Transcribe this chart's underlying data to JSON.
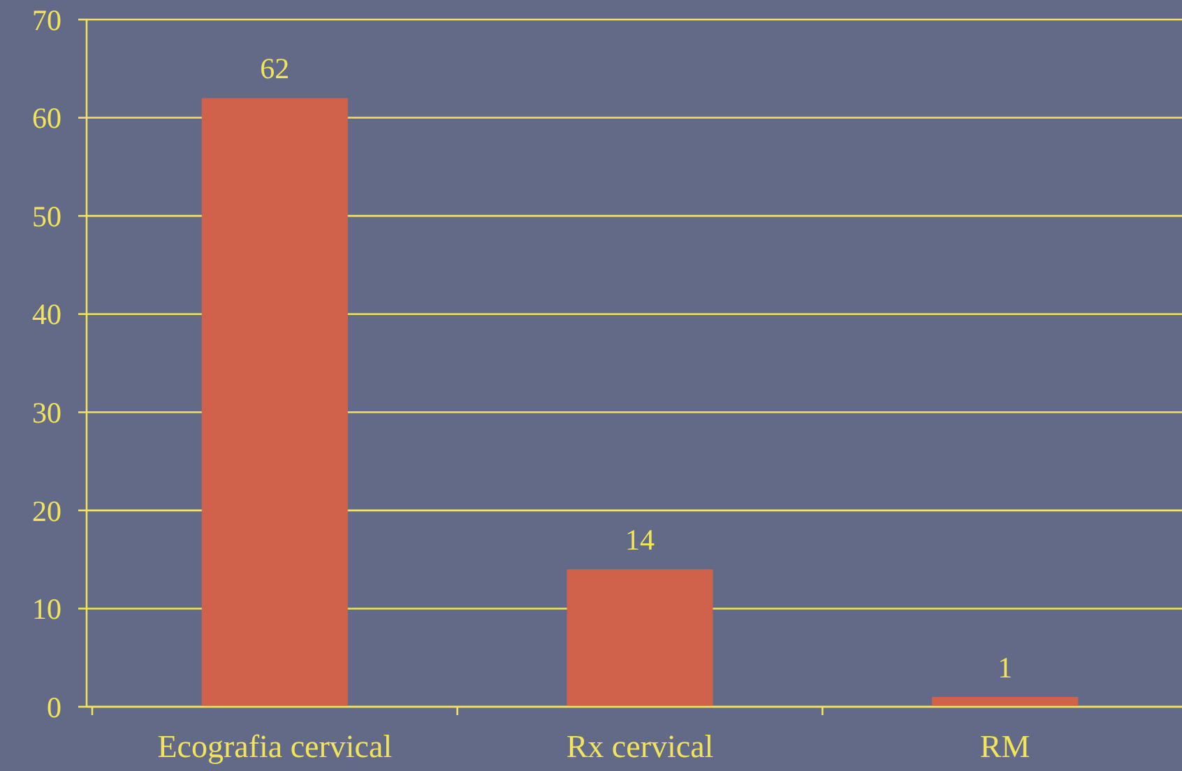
{
  "chart_data": {
    "type": "bar",
    "categories": [
      "Ecografia cervical",
      "Rx cervical",
      "RM"
    ],
    "values": [
      62,
      14,
      1
    ],
    "color": "#d0614a",
    "ylim": [
      0,
      70
    ],
    "yticks": [
      0,
      10,
      20,
      30,
      40,
      50,
      60,
      70
    ],
    "grid": "y",
    "data_labels": true
  }
}
